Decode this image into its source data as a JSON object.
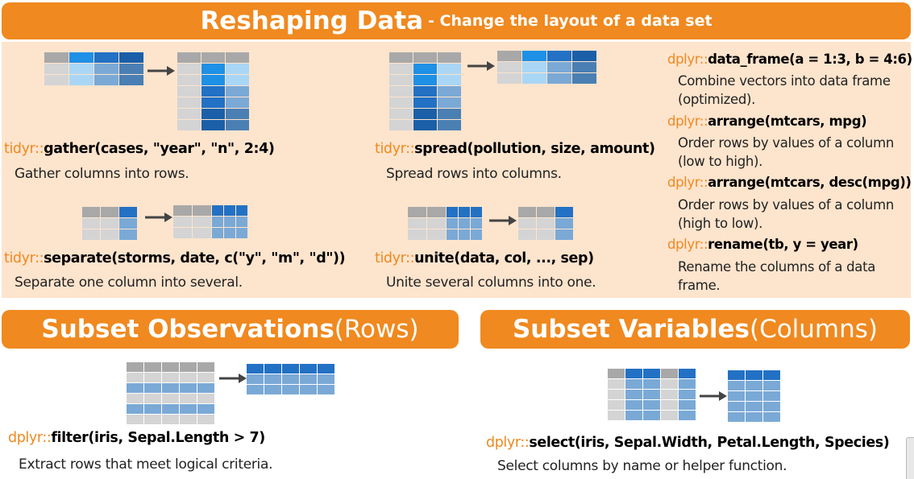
{
  "reshaping": {
    "title": "Reshaping Data",
    "subtitle": " - Change the layout of a data set",
    "items": [
      {
        "pkg": "tidyr::",
        "fn": "gather",
        "args": "(cases, \"year\", \"n\", 2:4)",
        "desc": "Gather columns into rows."
      },
      {
        "pkg": "tidyr::",
        "fn": "spread",
        "args": "(pollution, size, amount)",
        "desc": "Spread rows into columns."
      },
      {
        "pkg": "tidyr::",
        "fn": "separate",
        "args": "(storms, date, c(\"y\", \"m\", \"d\"))",
        "desc": "Separate one column into several."
      },
      {
        "pkg": "tidyr::",
        "fn": "unite",
        "args": "(data, col, ..., sep)",
        "desc": "Unite several columns into one."
      }
    ],
    "right": [
      {
        "pkg": "dplyr::",
        "fn": "data_frame",
        "args": "(a = 1:3, b = 4:6)",
        "desc": "Combine vectors into data frame (optimized)."
      },
      {
        "pkg": "dplyr::",
        "fn": "arrange",
        "args": "(mtcars, mpg)",
        "desc": "Order rows by values of a column (low to high)."
      },
      {
        "pkg": "dplyr::",
        "fn": "arrange",
        "args": "(mtcars, desc(mpg))",
        "desc": "Order rows by values of a column (high to low)."
      },
      {
        "pkg": "dplyr::",
        "fn": "rename",
        "args": "(tb, y = year)",
        "desc": "Rename the columns of a data frame."
      }
    ]
  },
  "subset_rows": {
    "title": "Subset Observations",
    "subtitle": " (Rows)",
    "pkg": "dplyr::",
    "fn": "filter",
    "args": "(iris, Sepal.Length > 7)",
    "desc": "Extract rows that meet logical criteria."
  },
  "subset_cols": {
    "title": "Subset Variables",
    "subtitle": " (Columns)",
    "pkg": "dplyr::",
    "fn": "select",
    "args": "(iris, Sepal.Width, Petal.Length, Species)",
    "desc": "Select columns by name or helper function."
  },
  "colors": {
    "banner": "#f0891f",
    "panel": "#fde4cd",
    "pkg": "#f0891f"
  }
}
